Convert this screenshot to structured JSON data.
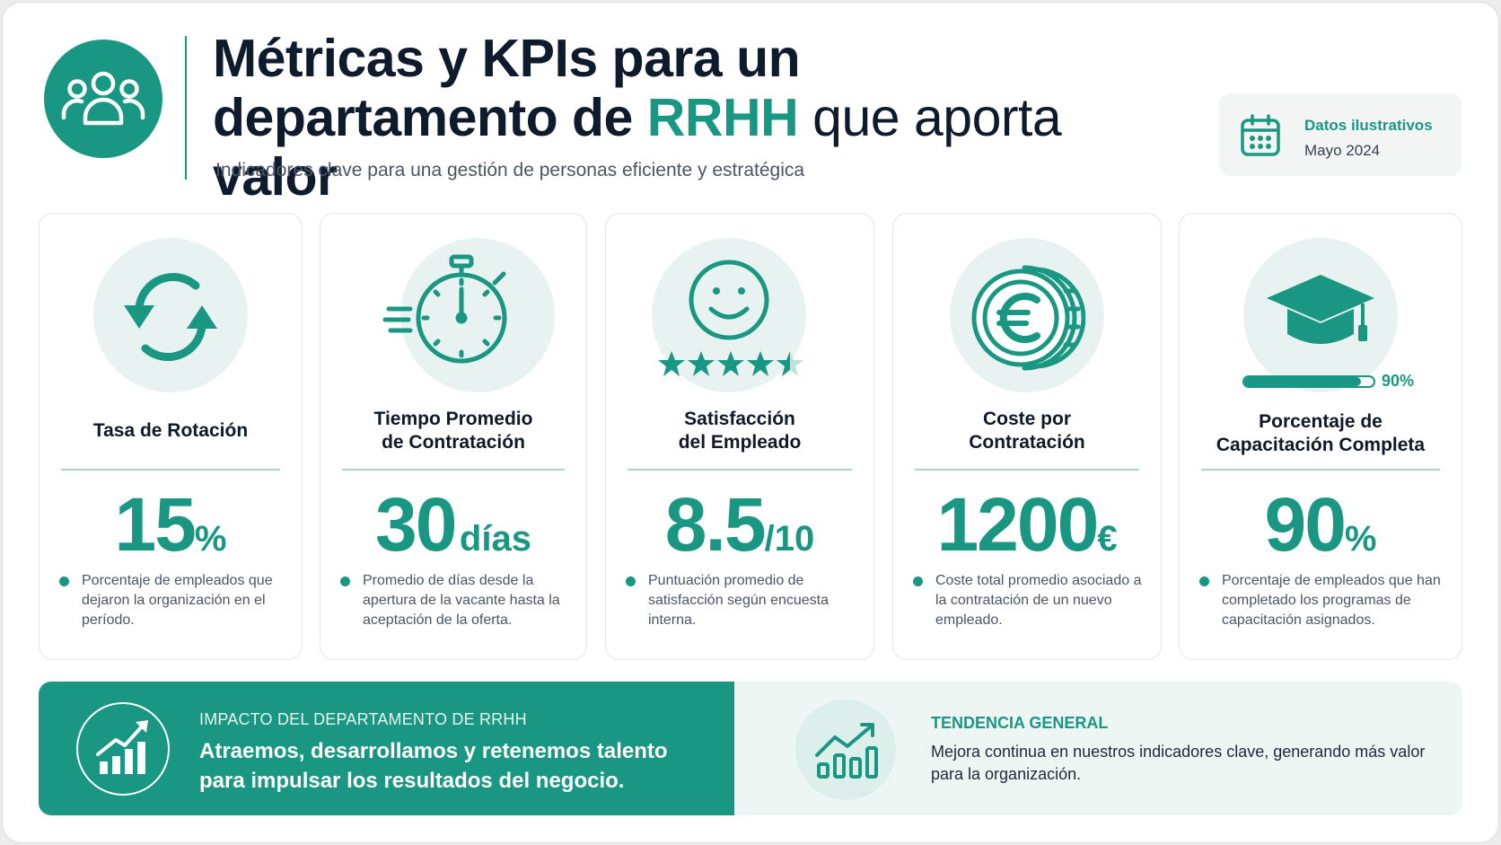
{
  "header": {
    "title_line1": "Métricas y KPIs para un",
    "title_line2_prefix": "departamento de",
    "title_line2_accent": "RRHH",
    "title_line2_suffix_light": "que aporta",
    "title_line2_suffix_bold": "valor",
    "subtitle": "Indicadores clave para una gestión de personas eficiente y estratégica",
    "logo_icon": "team-icon"
  },
  "date_box": {
    "label": "Datos ilustrativos",
    "value": "Mayo 2024",
    "icon": "calendar-icon"
  },
  "cards": [
    {
      "icon": "rotation-arrows-icon",
      "name_line1": "Tasa de Rotación",
      "name_line2": "",
      "value": "15",
      "unit": "%",
      "description": "Porcentaje de empleados que dejaron la organización en el período."
    },
    {
      "icon": "stopwatch-icon",
      "name_line1": "Tiempo Promedio",
      "name_line2": "de Contratación",
      "value": "30",
      "unit": "días",
      "description": "Promedio de días desde la apertura de la vacante hasta la aceptación de la oferta."
    },
    {
      "icon": "smiley-icon",
      "name_line1": "Satisfacción",
      "name_line2": "del Empleado",
      "value": "8.5",
      "unit": "/10",
      "rating_stars": 4.5,
      "description": "Puntuación promedio de satisfacción según encuesta interna."
    },
    {
      "icon": "euro-coin-icon",
      "name_line1": "Coste por",
      "name_line2": "Contratación",
      "value": "1200",
      "unit": "€",
      "description": "Coste total promedio asociado a la contratación de un nuevo empleado."
    },
    {
      "icon": "graduation-cap-icon",
      "name_line1": "Porcentaje de",
      "name_line2": "Capacitación Completa",
      "value": "90",
      "unit": "%",
      "progress_fraction": 0.9,
      "progress_label": "90%",
      "description": "Porcentaje de empleados que han completado los programas de capacitación asignados."
    }
  ],
  "impact": {
    "eyebrow": "IMPACTO DEL DEPARTAMENTO DE RRHH",
    "headline": "Atraemos, desarrollamos y retenemos talento para impulsar los resultados del negocio.",
    "icon": "growth-chart-icon"
  },
  "trend": {
    "title": "TENDENCIA GENERAL",
    "text": "Mejora continua en nuestros indicadores clave, generando más valor para la organización.",
    "icon": "trend-chart-icon"
  },
  "colors": {
    "accent": "#1a9783",
    "title_dark": "#0e1b2c",
    "icon_bg": "#e8f3f1"
  }
}
